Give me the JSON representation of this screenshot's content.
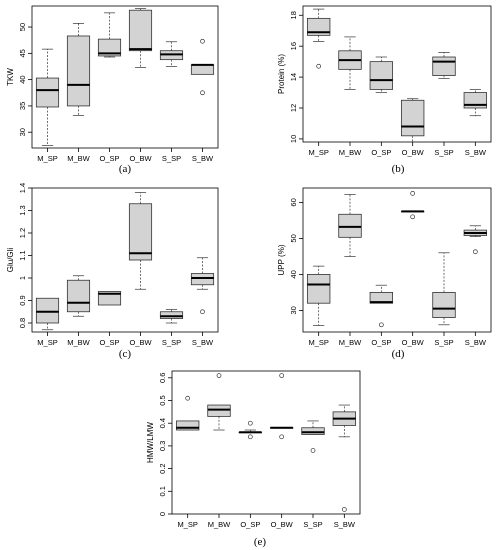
{
  "chart_data": [
    {
      "type": "boxplot",
      "panel_label": "(a)",
      "ylabel": "TKW",
      "ylim": [
        27,
        54
      ],
      "yticks": [
        30,
        35,
        40,
        45,
        50
      ],
      "categories": [
        "M_SP",
        "M_BW",
        "O_SP",
        "O_BW",
        "S_SP",
        "S_BW"
      ],
      "boxes": [
        {
          "min": 27.5,
          "q1": 34.8,
          "median": 38.0,
          "q3": 40.3,
          "max": 45.8,
          "outliers": []
        },
        {
          "min": 33.2,
          "q1": 35.0,
          "median": 39.0,
          "q3": 48.3,
          "max": 50.7,
          "outliers": []
        },
        {
          "min": 44.3,
          "q1": 44.5,
          "median": 45.0,
          "q3": 47.7,
          "max": 52.7,
          "outliers": []
        },
        {
          "min": 42.3,
          "q1": 45.5,
          "median": 45.8,
          "q3": 53.2,
          "max": 53.5,
          "outliers": []
        },
        {
          "min": 42.5,
          "q1": 43.8,
          "median": 44.8,
          "q3": 45.5,
          "max": 47.2,
          "outliers": []
        },
        {
          "min": 41.0,
          "q1": 41.0,
          "median": 42.8,
          "q3": 42.8,
          "max": 42.8,
          "outliers": [
            47.3,
            37.5
          ]
        }
      ]
    },
    {
      "type": "boxplot",
      "panel_label": "(b)",
      "ylabel": "Protein (%)",
      "ylim": [
        9.8,
        18.6
      ],
      "yticks": [
        10,
        12,
        14,
        16,
        18
      ],
      "categories": [
        "M_SP",
        "M_BW",
        "O_SP",
        "O_BW",
        "S_SP",
        "S_BW"
      ],
      "boxes": [
        {
          "min": 16.3,
          "q1": 16.7,
          "median": 16.9,
          "q3": 17.8,
          "max": 18.4,
          "outliers": [
            14.7
          ]
        },
        {
          "min": 13.2,
          "q1": 14.5,
          "median": 15.1,
          "q3": 15.7,
          "max": 16.6,
          "outliers": []
        },
        {
          "min": 13.0,
          "q1": 13.2,
          "median": 13.8,
          "q3": 15.0,
          "max": 15.3,
          "outliers": []
        },
        {
          "min": 9.8,
          "q1": 10.2,
          "median": 10.8,
          "q3": 12.5,
          "max": 12.6,
          "outliers": []
        },
        {
          "min": 13.9,
          "q1": 14.1,
          "median": 15.0,
          "q3": 15.3,
          "max": 15.6,
          "outliers": []
        },
        {
          "min": 11.5,
          "q1": 12.0,
          "median": 12.2,
          "q3": 13.0,
          "max": 13.2,
          "outliers": []
        }
      ]
    },
    {
      "type": "boxplot",
      "panel_label": "(c)",
      "ylabel": "Glu/Gli",
      "ylim": [
        0.76,
        1.4
      ],
      "yticks": [
        0.8,
        0.9,
        1.0,
        1.1,
        1.2,
        1.3,
        1.4
      ],
      "categories": [
        "M_SP",
        "M_BW",
        "O_SP",
        "O_BW",
        "S_SP",
        "S_BW"
      ],
      "boxes": [
        {
          "min": 0.77,
          "q1": 0.8,
          "median": 0.85,
          "q3": 0.91,
          "max": 0.91,
          "outliers": []
        },
        {
          "min": 0.83,
          "q1": 0.85,
          "median": 0.89,
          "q3": 0.99,
          "max": 1.01,
          "outliers": []
        },
        {
          "min": 0.88,
          "q1": 0.88,
          "median": 0.93,
          "q3": 0.94,
          "max": 0.94,
          "outliers": []
        },
        {
          "min": 0.95,
          "q1": 1.08,
          "median": 1.11,
          "q3": 1.33,
          "max": 1.38,
          "outliers": []
        },
        {
          "min": 0.8,
          "q1": 0.82,
          "median": 0.83,
          "q3": 0.85,
          "max": 0.86,
          "outliers": []
        },
        {
          "min": 0.95,
          "q1": 0.97,
          "median": 1.0,
          "q3": 1.02,
          "max": 1.09,
          "outliers": [
            0.85
          ]
        }
      ]
    },
    {
      "type": "boxplot",
      "panel_label": "(d)",
      "ylabel": "UPP (%)",
      "ylim": [
        24,
        64
      ],
      "yticks": [
        30,
        40,
        50,
        60
      ],
      "categories": [
        "M_SP",
        "M_BW",
        "O_SP",
        "O_BW",
        "S_SP",
        "S_BW"
      ],
      "boxes": [
        {
          "min": 25.8,
          "q1": 32.0,
          "median": 37.2,
          "q3": 40.0,
          "max": 42.3,
          "outliers": []
        },
        {
          "min": 45.0,
          "q1": 50.3,
          "median": 53.2,
          "q3": 56.7,
          "max": 62.2,
          "outliers": []
        },
        {
          "min": 32.0,
          "q1": 32.0,
          "median": 32.3,
          "q3": 35.0,
          "max": 37.0,
          "outliers": [
            26.0
          ]
        },
        {
          "min": 57.5,
          "q1": 57.5,
          "median": 57.5,
          "q3": 57.5,
          "max": 57.5,
          "outliers": [
            62.5,
            56.0
          ]
        },
        {
          "min": 26.0,
          "q1": 28.0,
          "median": 30.5,
          "q3": 35.0,
          "max": 46.0,
          "outliers": []
        },
        {
          "min": 50.5,
          "q1": 50.8,
          "median": 51.5,
          "q3": 52.3,
          "max": 53.5,
          "outliers": [
            46.3
          ]
        }
      ]
    },
    {
      "type": "boxplot",
      "panel_label": "(e)",
      "ylabel": "HMW/LMW",
      "ylim": [
        0,
        0.63
      ],
      "yticks": [
        0.0,
        0.1,
        0.2,
        0.3,
        0.4,
        0.5,
        0.6
      ],
      "categories": [
        "M_SP",
        "M_BW",
        "O_SP",
        "O_BW",
        "S_SP",
        "S_BW"
      ],
      "boxes": [
        {
          "min": 0.37,
          "q1": 0.37,
          "median": 0.38,
          "q3": 0.41,
          "max": 0.41,
          "outliers": [
            0.51
          ]
        },
        {
          "min": 0.37,
          "q1": 0.43,
          "median": 0.46,
          "q3": 0.48,
          "max": 0.48,
          "outliers": [
            0.61
          ]
        },
        {
          "min": 0.36,
          "q1": 0.36,
          "median": 0.36,
          "q3": 0.36,
          "max": 0.37,
          "outliers": [
            0.4,
            0.34
          ]
        },
        {
          "min": 0.38,
          "q1": 0.38,
          "median": 0.38,
          "q3": 0.38,
          "max": 0.38,
          "outliers": [
            0.61,
            0.34
          ]
        },
        {
          "min": 0.35,
          "q1": 0.35,
          "median": 0.36,
          "q3": 0.38,
          "max": 0.41,
          "outliers": [
            0.28
          ]
        },
        {
          "min": 0.34,
          "q1": 0.39,
          "median": 0.42,
          "q3": 0.45,
          "max": 0.48,
          "outliers": [
            0.02
          ]
        }
      ]
    }
  ]
}
